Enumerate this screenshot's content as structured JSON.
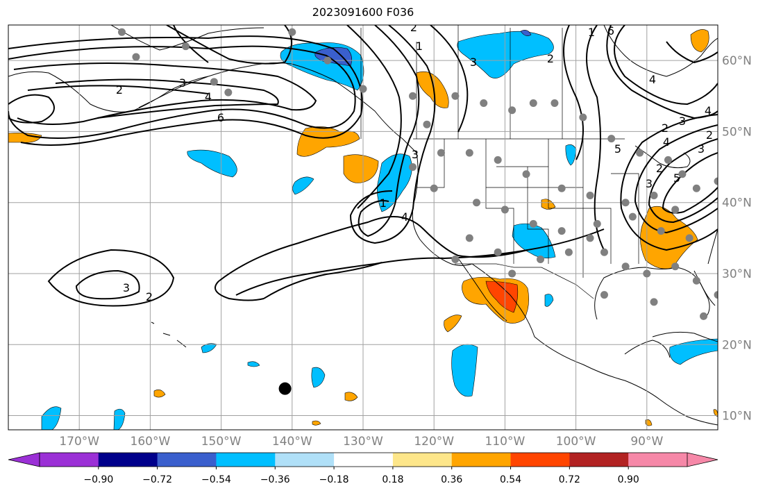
{
  "title": "2023091600 F036",
  "colors": {
    "neg_090": "#9b30d6",
    "neg_072": "#00008b",
    "neg_054": "#3a5fcd",
    "neg_036": "#00bfff",
    "neg_018": "#b0e0f8",
    "zero": "#ffffff",
    "pos_018": "#fde68a",
    "pos_036": "#ffa500",
    "pos_054": "#ff4500",
    "pos_072": "#b22222",
    "pos_090": "#f688a8",
    "contour": "#000000",
    "grid": "#a0a0a0",
    "obs_dot": "#808080",
    "storm_dot": "#000000"
  },
  "chart_data": {
    "type": "contour-map",
    "title": "2023091600 F036",
    "projection": "PlateCarree",
    "lon_range": [
      -180,
      -80
    ],
    "lat_range": [
      8,
      65
    ],
    "longitude_labels": [
      "170°W",
      "160°W",
      "150°W",
      "140°W",
      "130°W",
      "120°W",
      "110°W",
      "100°W",
      "90°W"
    ],
    "longitudes": [
      -170,
      -160,
      -150,
      -140,
      -130,
      -120,
      -110,
      -100,
      -90
    ],
    "latitude_labels": [
      "10°N",
      "20°N",
      "30°N",
      "40°N",
      "50°N",
      "60°N"
    ],
    "latitudes": [
      10,
      20,
      30,
      40,
      50,
      60
    ],
    "colorbar": {
      "levels": [
        -0.9,
        -0.72,
        -0.54,
        -0.36,
        -0.18,
        0.18,
        0.36,
        0.54,
        0.72,
        0.9
      ],
      "tick_labels": [
        "−0.90",
        "−0.72",
        "−0.54",
        "−0.36",
        "−0.18",
        "0.18",
        "0.36",
        "0.54",
        "0.72",
        "0.90"
      ],
      "extend": "both"
    },
    "contour_labels": [
      "2",
      "3",
      "4",
      "6",
      "3",
      "2",
      "1",
      "4",
      "3",
      "1",
      "2",
      "3",
      "2",
      "1",
      "4",
      "2",
      "3",
      "2",
      "3",
      "4",
      "5",
      "5",
      "6",
      "4",
      "3",
      "2"
    ],
    "observation_points": [
      [
        -164,
        64
      ],
      [
        -162,
        60.5
      ],
      [
        -155,
        62
      ],
      [
        -151,
        57
      ],
      [
        -149,
        55.5
      ],
      [
        -140,
        64
      ],
      [
        -135,
        60
      ],
      [
        -130,
        56
      ],
      [
        -123,
        55
      ],
      [
        -121,
        51
      ],
      [
        -117,
        55
      ],
      [
        -113,
        54
      ],
      [
        -109,
        53
      ],
      [
        -106,
        54
      ],
      [
        -103,
        54
      ],
      [
        -99,
        52
      ],
      [
        -95,
        49
      ],
      [
        -91,
        47
      ],
      [
        -87,
        46
      ],
      [
        -85,
        44
      ],
      [
        -83,
        42
      ],
      [
        -80,
        43
      ],
      [
        -86,
        39
      ],
      [
        -89,
        41
      ],
      [
        -93,
        40
      ],
      [
        -98,
        41
      ],
      [
        -102,
        42
      ],
      [
        -107,
        44
      ],
      [
        -111,
        46
      ],
      [
        -115,
        47
      ],
      [
        -119,
        47
      ],
      [
        -123,
        45
      ],
      [
        -120,
        42
      ],
      [
        -114,
        40
      ],
      [
        -110,
        39
      ],
      [
        -106,
        37
      ],
      [
        -102,
        36
      ],
      [
        -98,
        35
      ],
      [
        -96,
        33
      ],
      [
        -93,
        31
      ],
      [
        -90,
        30
      ],
      [
        -86,
        31
      ],
      [
        -83,
        29
      ],
      [
        -80,
        27
      ],
      [
        -84,
        35
      ],
      [
        -88,
        36
      ],
      [
        -92,
        38
      ],
      [
        -97,
        37
      ],
      [
        -101,
        33
      ],
      [
        -105,
        32
      ],
      [
        -109,
        30
      ],
      [
        -111,
        33
      ],
      [
        -115,
        35
      ],
      [
        -117,
        32
      ],
      [
        -96,
        27
      ],
      [
        -89,
        26
      ],
      [
        -82,
        24
      ]
    ],
    "storm_center": {
      "lon": -141,
      "lat": 13.8
    }
  },
  "map_labels": {
    "map_name": "North Pacific and North America contour map"
  }
}
